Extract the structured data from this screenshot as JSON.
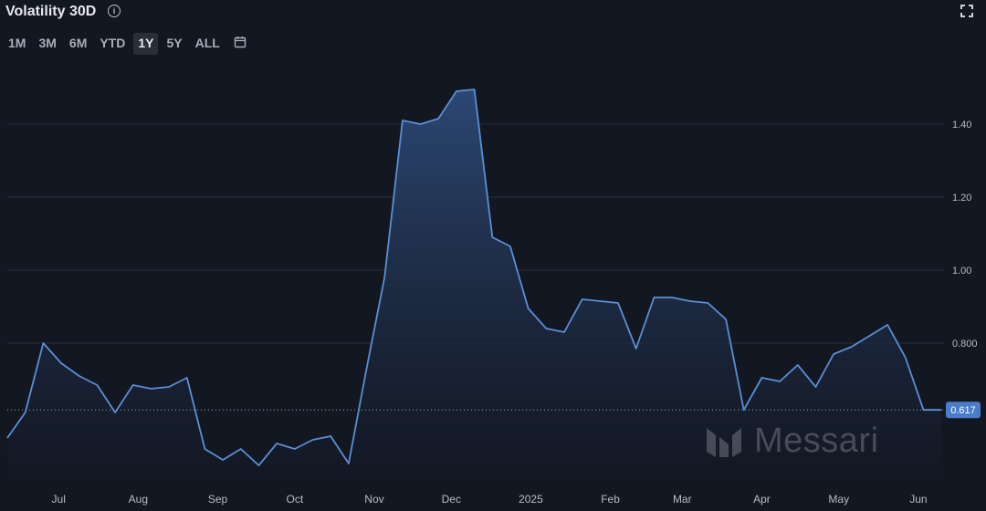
{
  "header": {
    "title": "Volatility 30D",
    "info_icon": "info-icon",
    "fullscreen_icon": "fullscreen-icon"
  },
  "range_buttons": [
    "1M",
    "3M",
    "6M",
    "YTD",
    "1Y",
    "5Y",
    "ALL"
  ],
  "active_range": "1Y",
  "calendar_icon": "calendar-icon",
  "watermark": "Messari",
  "colors": {
    "background": "#131722",
    "line": "#5b8fd6",
    "fill_top": "#2d4a78",
    "fill_bottom": "#131722",
    "badge": "#4a7cc7"
  },
  "chart_data": {
    "type": "area",
    "title": "Volatility 30D",
    "xlabel": "",
    "ylabel": "",
    "ylim": [
      0.46,
      1.55
    ],
    "yticks": [
      0.8,
      1.0,
      1.2,
      1.4
    ],
    "ytick_labels": [
      "0.800",
      "1.00",
      "1.20",
      "1.40"
    ],
    "x_tick_labels": [
      "Jul",
      "Aug",
      "Sep",
      "Oct",
      "Nov",
      "Dec",
      "2025",
      "Feb",
      "Mar",
      "Apr",
      "May",
      "Jun"
    ],
    "x_tick_dates": [
      "2024-07-01",
      "2024-08-01",
      "2024-09-01",
      "2024-10-01",
      "2024-11-01",
      "2024-12-01",
      "2025-01-01",
      "2025-02-01",
      "2025-03-01",
      "2025-04-01",
      "2025-05-01",
      "2025-06-01"
    ],
    "x_range": [
      "2024-06-11",
      "2025-06-11"
    ],
    "last_value_label": "0.617",
    "grid": true,
    "series": [
      {
        "dates": [
          "2024-06-11",
          "2024-06-18",
          "2024-06-25",
          "2024-07-02",
          "2024-07-09",
          "2024-07-16",
          "2024-07-23",
          "2024-07-30",
          "2024-08-06",
          "2024-08-13",
          "2024-08-20",
          "2024-08-27",
          "2024-09-03",
          "2024-09-10",
          "2024-09-17",
          "2024-09-24",
          "2024-10-01",
          "2024-10-08",
          "2024-10-15",
          "2024-10-22",
          "2024-10-29",
          "2024-11-05",
          "2024-11-12",
          "2024-11-19",
          "2024-11-26",
          "2024-12-03",
          "2024-12-10",
          "2024-12-17",
          "2024-12-24",
          "2024-12-31",
          "2025-01-07",
          "2025-01-14",
          "2025-01-21",
          "2025-01-28",
          "2025-02-04",
          "2025-02-11",
          "2025-02-18",
          "2025-02-25",
          "2025-03-04",
          "2025-03-11",
          "2025-03-18",
          "2025-03-25",
          "2025-04-01",
          "2025-04-08",
          "2025-04-15",
          "2025-04-22",
          "2025-04-29",
          "2025-05-06",
          "2025-05-13",
          "2025-05-20",
          "2025-05-27",
          "2025-06-03",
          "2025-06-10"
        ],
        "values": [
          0.54,
          0.61,
          0.8,
          0.745,
          0.71,
          0.685,
          0.61,
          0.685,
          0.675,
          0.68,
          0.705,
          0.51,
          0.48,
          0.51,
          0.465,
          0.525,
          0.51,
          0.535,
          0.545,
          0.47,
          0.73,
          0.98,
          1.41,
          1.4,
          1.415,
          1.49,
          1.495,
          1.09,
          1.065,
          0.895,
          0.84,
          0.83,
          0.92,
          0.915,
          0.91,
          0.785,
          0.925,
          0.925,
          0.915,
          0.91,
          0.865,
          0.617,
          0.705,
          0.695,
          0.74,
          0.68,
          0.77,
          0.79,
          0.82,
          0.85,
          0.76,
          0.617,
          0.617
        ]
      }
    ]
  }
}
